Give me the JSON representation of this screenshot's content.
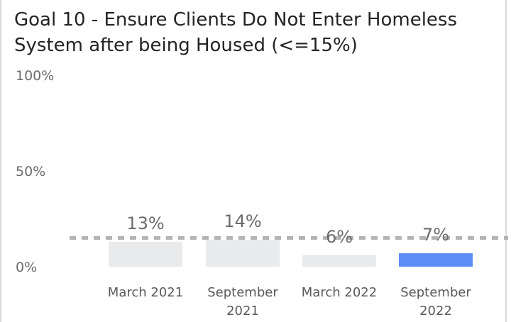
{
  "chart_data": {
    "type": "bar",
    "title": "Goal 10 - Ensure Clients Do Not Enter Homeless System after being Housed (<=15%)",
    "categories": [
      [
        "March 2021"
      ],
      [
        "September",
        "2021"
      ],
      [
        "March 2022"
      ],
      [
        "September",
        "2022"
      ]
    ],
    "values": [
      13,
      14,
      6,
      7
    ],
    "data_labels": [
      "13%",
      "14%",
      "6%",
      "7%"
    ],
    "yticks": [
      0,
      50,
      100
    ],
    "ytick_labels": [
      "0%",
      "50%",
      "100%"
    ],
    "ylim": [
      0,
      100
    ],
    "target": 15,
    "highlight_index": 3,
    "colors": {
      "bar": "#e8eaeb",
      "highlight": "#5b8ef7",
      "target_line": "#b3b3b3"
    },
    "grid": false
  }
}
